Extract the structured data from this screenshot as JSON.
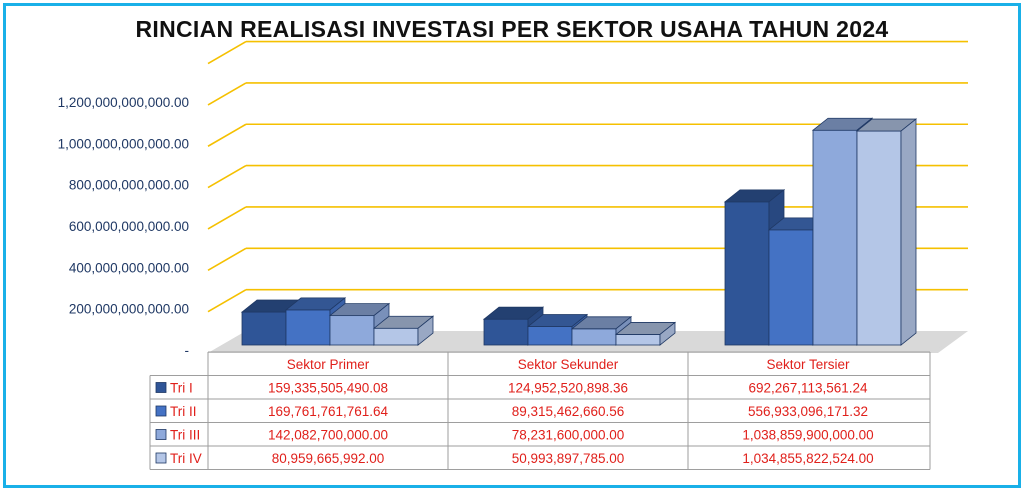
{
  "chart_data": {
    "type": "bar",
    "title": "RINCIAN REALISASI INVESTASI PER SEKTOR USAHA TAHUN 2024",
    "categories": [
      "Sektor Primer",
      "Sektor Sekunder",
      "Sektor Tersier"
    ],
    "series": [
      {
        "name": "Tri I",
        "values": [
          159335505490.08,
          124952520898.36,
          692267113561.24
        ],
        "labels": [
          "159,335,505,490.08",
          "124,952,520,898.36",
          "692,267,113,561.24"
        ]
      },
      {
        "name": "Tri II",
        "values": [
          169761761761.64,
          89315462660.56,
          556933096171.32
        ],
        "labels": [
          "169,761,761,761.64",
          "89,315,462,660.56",
          "556,933,096,171.32"
        ]
      },
      {
        "name": "Tri III",
        "values": [
          142082700000.0,
          78231600000.0,
          1038859900000.0
        ],
        "labels": [
          "142,082,700,000.00",
          "78,231,600,000.00",
          "1,038,859,900,000.00"
        ]
      },
      {
        "name": "Tri IV",
        "values": [
          80959665992.0,
          50993897785.0,
          1034855822524.0
        ],
        "labels": [
          "80,959,665,992.00",
          "50,993,897,785.00",
          "1,034,855,822,524.00"
        ]
      }
    ],
    "yticks": [
      "-",
      "200,000,000,000.00",
      "400,000,000,000.00",
      "600,000,000,000.00",
      "800,000,000,000.00",
      "1,000,000,000,000.00",
      "1,200,000,000,000.00"
    ],
    "ylim": [
      0,
      1400000000000
    ],
    "grid": true,
    "legend": "data-table"
  },
  "colors": {
    "series": [
      "#2f5597",
      "#4472c4",
      "#8ea9db",
      "#b4c6e7"
    ],
    "grid": "#f5c000",
    "floor": "#d9d9d9",
    "frame": "#19b0e8",
    "label_text": "#e0201b",
    "axis_text": "#1f3864"
  }
}
